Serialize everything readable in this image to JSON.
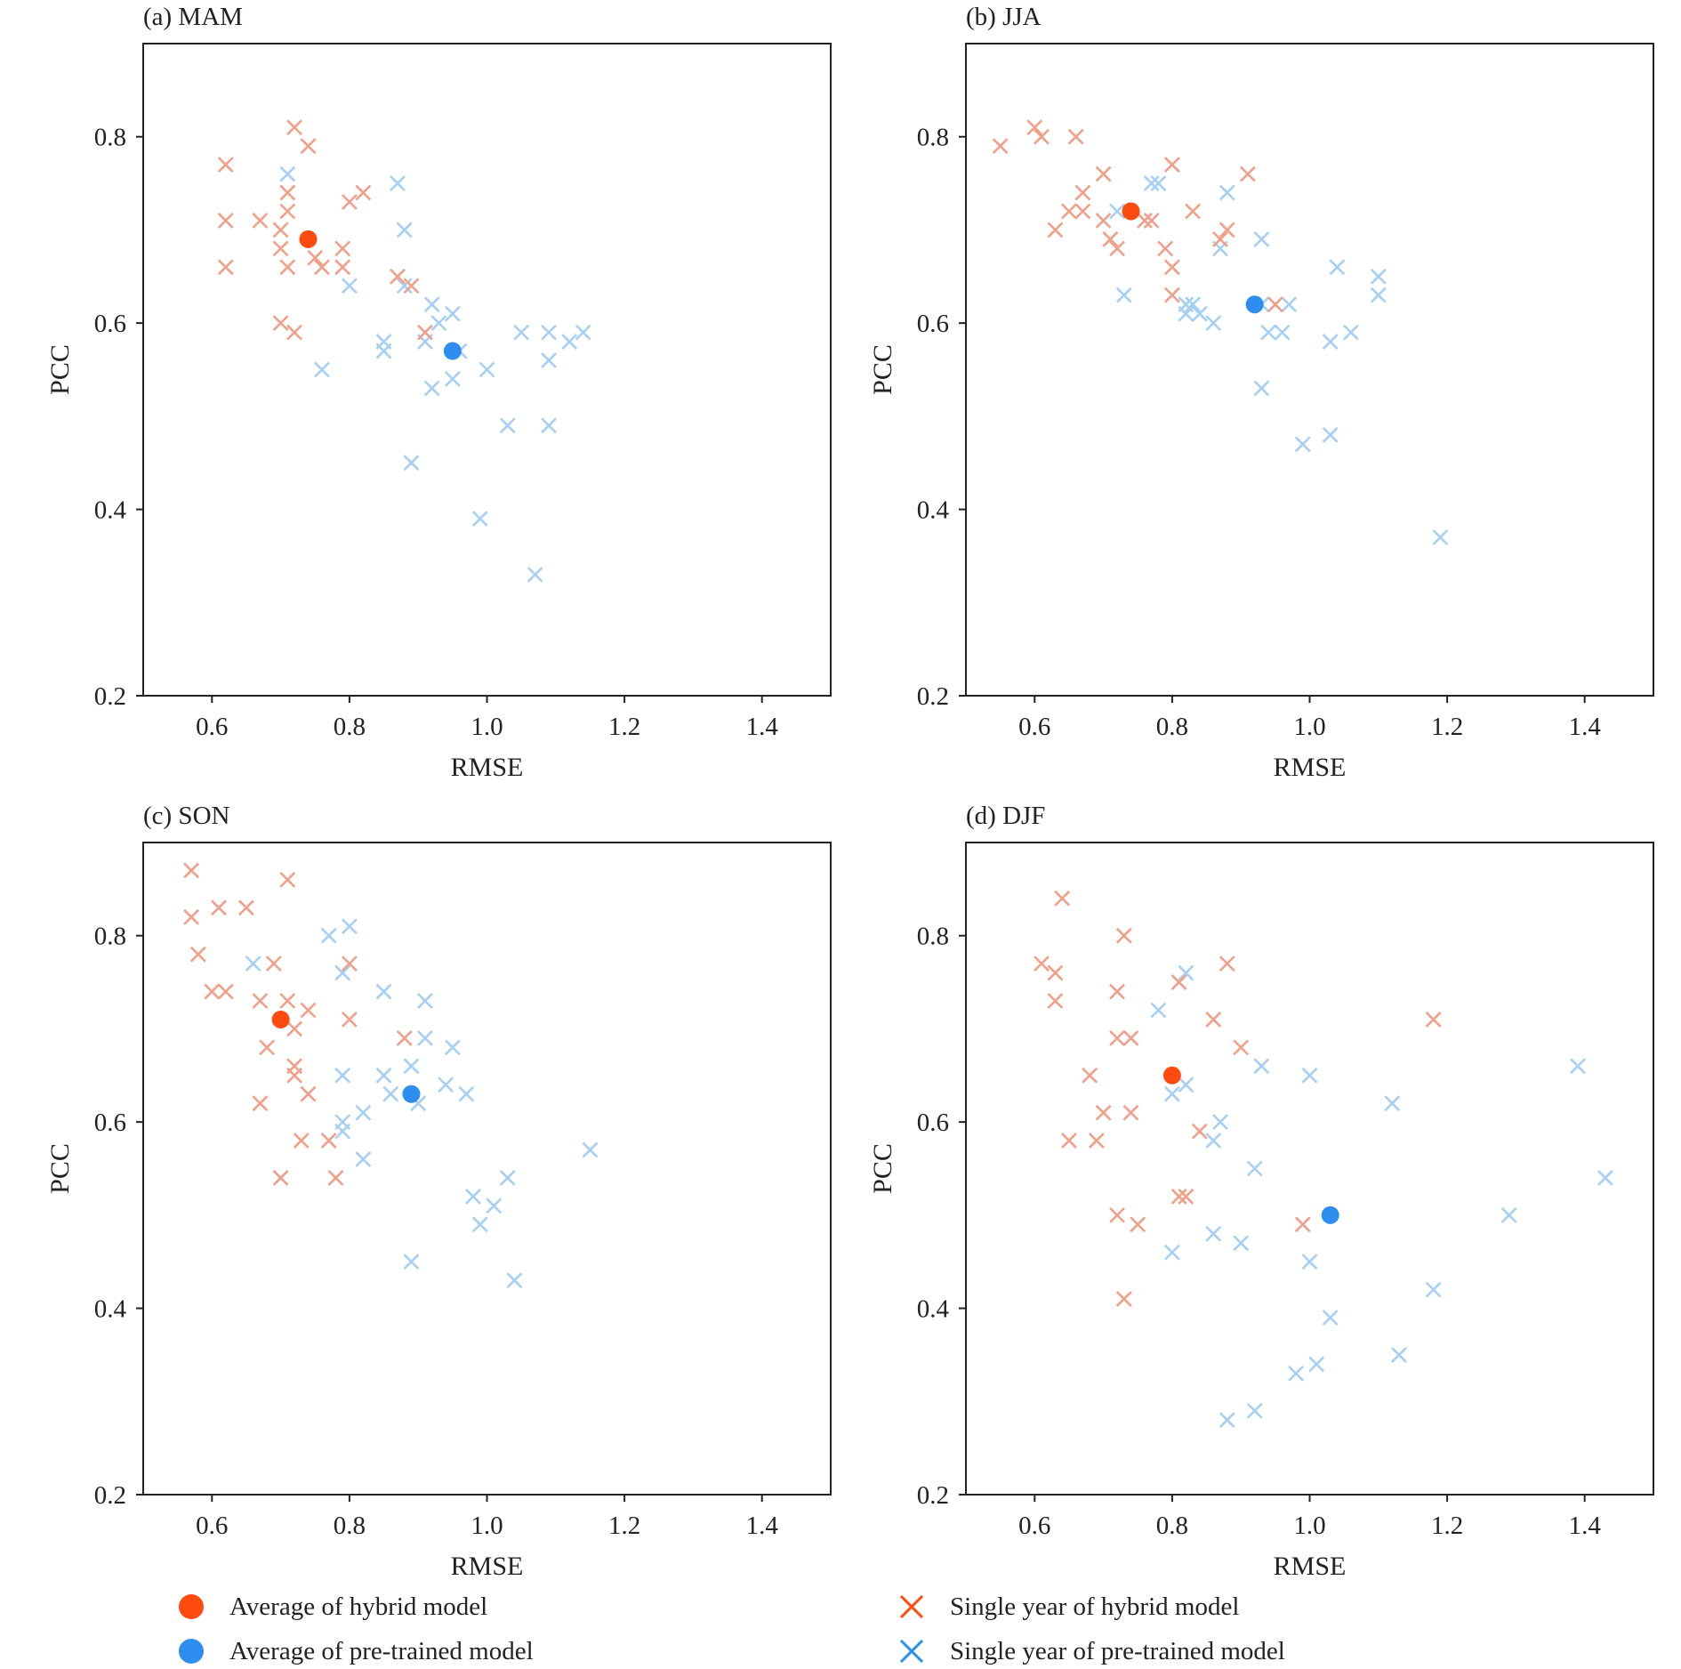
{
  "colors": {
    "hybrid": "#ff4a10",
    "pretrained": "#2d8ef0",
    "hybrid_x": "#f0a088",
    "pretrained_x": "#a6cff4"
  },
  "axes_labels": {
    "x": "RMSE",
    "y": "PCC"
  },
  "legend": {
    "avg_hybrid": "Average of hybrid model",
    "avg_pretrained": "Average of pre-trained model",
    "single_hybrid": "Single year of hybrid model",
    "single_pretrained": "Single year of pre-trained model"
  },
  "chart_data": [
    {
      "type": "scatter",
      "title": "(a) MAM",
      "xlabel": "RMSE",
      "ylabel": "PCC",
      "xlim": [
        0.5,
        1.5
      ],
      "ylim": [
        0.2,
        0.9
      ],
      "xticks": [
        0.6,
        0.8,
        1.0,
        1.2,
        1.4
      ],
      "yticks": [
        0.2,
        0.4,
        0.6,
        0.8
      ],
      "average_hybrid": [
        0.74,
        0.69
      ],
      "average_pretrained": [
        0.95,
        0.57
      ],
      "hybrid_years": [
        [
          0.72,
          0.81
        ],
        [
          0.74,
          0.79
        ],
        [
          0.62,
          0.77
        ],
        [
          0.62,
          0.71
        ],
        [
          0.67,
          0.71
        ],
        [
          0.71,
          0.74
        ],
        [
          0.71,
          0.72
        ],
        [
          0.7,
          0.7
        ],
        [
          0.7,
          0.68
        ],
        [
          0.82,
          0.74
        ],
        [
          0.8,
          0.73
        ],
        [
          0.79,
          0.68
        ],
        [
          0.75,
          0.67
        ],
        [
          0.76,
          0.66
        ],
        [
          0.79,
          0.66
        ],
        [
          0.71,
          0.66
        ],
        [
          0.62,
          0.66
        ],
        [
          0.87,
          0.65
        ],
        [
          0.89,
          0.64
        ],
        [
          0.7,
          0.6
        ],
        [
          0.72,
          0.59
        ],
        [
          0.91,
          0.59
        ]
      ],
      "pretrained_years": [
        [
          0.71,
          0.76
        ],
        [
          0.87,
          0.75
        ],
        [
          0.88,
          0.7
        ],
        [
          0.8,
          0.64
        ],
        [
          0.88,
          0.64
        ],
        [
          0.92,
          0.62
        ],
        [
          0.95,
          0.61
        ],
        [
          0.93,
          0.6
        ],
        [
          0.85,
          0.58
        ],
        [
          0.91,
          0.58
        ],
        [
          1.05,
          0.59
        ],
        [
          1.09,
          0.59
        ],
        [
          1.14,
          0.59
        ],
        [
          1.12,
          0.58
        ],
        [
          0.85,
          0.57
        ],
        [
          0.96,
          0.57
        ],
        [
          0.76,
          0.55
        ],
        [
          0.92,
          0.53
        ],
        [
          0.95,
          0.54
        ],
        [
          1.0,
          0.55
        ],
        [
          1.09,
          0.56
        ],
        [
          1.03,
          0.49
        ],
        [
          1.09,
          0.49
        ],
        [
          0.89,
          0.45
        ],
        [
          0.99,
          0.39
        ],
        [
          1.07,
          0.33
        ]
      ]
    },
    {
      "type": "scatter",
      "title": "(b) JJA",
      "xlabel": "RMSE",
      "ylabel": "PCC",
      "xlim": [
        0.5,
        1.5
      ],
      "ylim": [
        0.2,
        0.9
      ],
      "xticks": [
        0.6,
        0.8,
        1.0,
        1.2,
        1.4
      ],
      "yticks": [
        0.2,
        0.4,
        0.6,
        0.8
      ],
      "average_hybrid": [
        0.74,
        0.72
      ],
      "average_pretrained": [
        0.92,
        0.62
      ],
      "hybrid_years": [
        [
          0.55,
          0.79
        ],
        [
          0.6,
          0.81
        ],
        [
          0.61,
          0.8
        ],
        [
          0.66,
          0.8
        ],
        [
          0.67,
          0.74
        ],
        [
          0.67,
          0.72
        ],
        [
          0.65,
          0.72
        ],
        [
          0.63,
          0.7
        ],
        [
          0.7,
          0.76
        ],
        [
          0.7,
          0.71
        ],
        [
          0.71,
          0.69
        ],
        [
          0.72,
          0.68
        ],
        [
          0.76,
          0.71
        ],
        [
          0.77,
          0.71
        ],
        [
          0.8,
          0.77
        ],
        [
          0.8,
          0.77
        ],
        [
          0.91,
          0.76
        ],
        [
          0.83,
          0.72
        ],
        [
          0.88,
          0.7
        ],
        [
          0.87,
          0.69
        ],
        [
          0.79,
          0.68
        ],
        [
          0.8,
          0.66
        ],
        [
          0.8,
          0.63
        ],
        [
          0.95,
          0.62
        ]
      ],
      "pretrained_years": [
        [
          0.78,
          0.75
        ],
        [
          0.77,
          0.75
        ],
        [
          0.88,
          0.74
        ],
        [
          0.72,
          0.72
        ],
        [
          0.71,
          0.69
        ],
        [
          0.87,
          0.68
        ],
        [
          0.93,
          0.69
        ],
        [
          0.73,
          0.63
        ],
        [
          0.82,
          0.62
        ],
        [
          0.83,
          0.62
        ],
        [
          0.82,
          0.61
        ],
        [
          0.84,
          0.61
        ],
        [
          0.86,
          0.6
        ],
        [
          0.93,
          0.62
        ],
        [
          0.97,
          0.62
        ],
        [
          0.94,
          0.59
        ],
        [
          0.96,
          0.59
        ],
        [
          1.04,
          0.66
        ],
        [
          1.1,
          0.65
        ],
        [
          1.1,
          0.63
        ],
        [
          1.03,
          0.58
        ],
        [
          1.06,
          0.59
        ],
        [
          0.93,
          0.53
        ],
        [
          0.99,
          0.47
        ],
        [
          1.03,
          0.48
        ],
        [
          1.19,
          0.37
        ]
      ]
    },
    {
      "type": "scatter",
      "title": "(c) SON",
      "xlabel": "RMSE",
      "ylabel": "PCC",
      "xlim": [
        0.5,
        1.5
      ],
      "ylim": [
        0.2,
        0.9
      ],
      "xticks": [
        0.6,
        0.8,
        1.0,
        1.2,
        1.4
      ],
      "yticks": [
        0.2,
        0.4,
        0.6,
        0.8
      ],
      "average_hybrid": [
        0.7,
        0.71
      ],
      "average_pretrained": [
        0.89,
        0.63
      ],
      "hybrid_years": [
        [
          0.57,
          0.87
        ],
        [
          0.71,
          0.86
        ],
        [
          0.61,
          0.83
        ],
        [
          0.65,
          0.83
        ],
        [
          0.57,
          0.82
        ],
        [
          0.58,
          0.78
        ],
        [
          0.6,
          0.74
        ],
        [
          0.62,
          0.74
        ],
        [
          0.67,
          0.73
        ],
        [
          0.69,
          0.77
        ],
        [
          0.71,
          0.73
        ],
        [
          0.8,
          0.77
        ],
        [
          0.74,
          0.72
        ],
        [
          0.8,
          0.71
        ],
        [
          0.72,
          0.7
        ],
        [
          0.68,
          0.68
        ],
        [
          0.72,
          0.66
        ],
        [
          0.72,
          0.65
        ],
        [
          0.74,
          0.63
        ],
        [
          0.88,
          0.69
        ],
        [
          0.67,
          0.62
        ],
        [
          0.73,
          0.58
        ],
        [
          0.77,
          0.58
        ],
        [
          0.7,
          0.54
        ],
        [
          0.78,
          0.54
        ]
      ],
      "pretrained_years": [
        [
          0.77,
          0.8
        ],
        [
          0.8,
          0.81
        ],
        [
          0.66,
          0.77
        ],
        [
          0.79,
          0.76
        ],
        [
          0.85,
          0.74
        ],
        [
          0.91,
          0.73
        ],
        [
          0.91,
          0.69
        ],
        [
          0.95,
          0.68
        ],
        [
          0.79,
          0.65
        ],
        [
          0.85,
          0.65
        ],
        [
          0.89,
          0.66
        ],
        [
          0.86,
          0.63
        ],
        [
          0.9,
          0.62
        ],
        [
          0.94,
          0.64
        ],
        [
          0.97,
          0.63
        ],
        [
          0.79,
          0.6
        ],
        [
          0.82,
          0.61
        ],
        [
          0.79,
          0.59
        ],
        [
          0.82,
          0.56
        ],
        [
          1.15,
          0.57
        ],
        [
          1.03,
          0.54
        ],
        [
          0.98,
          0.52
        ],
        [
          1.01,
          0.51
        ],
        [
          0.99,
          0.49
        ],
        [
          0.89,
          0.45
        ],
        [
          1.04,
          0.43
        ]
      ]
    },
    {
      "type": "scatter",
      "title": "(d) DJF",
      "xlabel": "RMSE",
      "ylabel": "PCC",
      "xlim": [
        0.5,
        1.5
      ],
      "ylim": [
        0.2,
        0.9
      ],
      "xticks": [
        0.6,
        0.8,
        1.0,
        1.2,
        1.4
      ],
      "yticks": [
        0.2,
        0.4,
        0.6,
        0.8
      ],
      "average_hybrid": [
        0.8,
        0.65
      ],
      "average_pretrained": [
        1.03,
        0.5
      ],
      "hybrid_years": [
        [
          0.64,
          0.84
        ],
        [
          0.73,
          0.8
        ],
        [
          0.61,
          0.77
        ],
        [
          0.63,
          0.76
        ],
        [
          0.88,
          0.77
        ],
        [
          0.81,
          0.75
        ],
        [
          0.72,
          0.74
        ],
        [
          0.63,
          0.73
        ],
        [
          0.86,
          0.71
        ],
        [
          1.18,
          0.71
        ],
        [
          0.74,
          0.69
        ],
        [
          0.72,
          0.69
        ],
        [
          0.9,
          0.68
        ],
        [
          0.68,
          0.65
        ],
        [
          0.7,
          0.61
        ],
        [
          0.74,
          0.61
        ],
        [
          0.84,
          0.59
        ],
        [
          0.69,
          0.58
        ],
        [
          0.65,
          0.58
        ],
        [
          0.81,
          0.52
        ],
        [
          0.82,
          0.52
        ],
        [
          0.72,
          0.5
        ],
        [
          0.75,
          0.49
        ],
        [
          0.99,
          0.49
        ],
        [
          0.73,
          0.41
        ]
      ],
      "pretrained_years": [
        [
          0.82,
          0.76
        ],
        [
          0.78,
          0.72
        ],
        [
          0.93,
          0.66
        ],
        [
          1.0,
          0.65
        ],
        [
          1.39,
          0.66
        ],
        [
          0.82,
          0.64
        ],
        [
          0.8,
          0.63
        ],
        [
          1.12,
          0.62
        ],
        [
          0.87,
          0.6
        ],
        [
          0.86,
          0.58
        ],
        [
          0.92,
          0.55
        ],
        [
          1.43,
          0.54
        ],
        [
          1.29,
          0.5
        ],
        [
          0.86,
          0.48
        ],
        [
          0.9,
          0.47
        ],
        [
          0.8,
          0.46
        ],
        [
          1.0,
          0.45
        ],
        [
          1.18,
          0.42
        ],
        [
          1.03,
          0.39
        ],
        [
          1.13,
          0.35
        ],
        [
          1.01,
          0.34
        ],
        [
          0.98,
          0.33
        ],
        [
          0.92,
          0.29
        ],
        [
          0.88,
          0.28
        ]
      ]
    }
  ]
}
